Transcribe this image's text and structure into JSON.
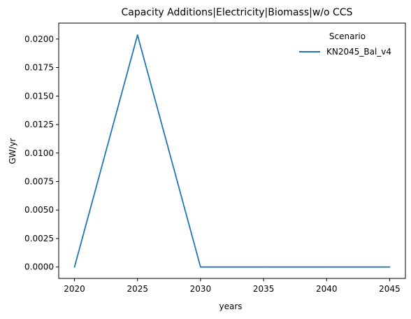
{
  "chart_data": {
    "type": "line",
    "title": "Capacity Additions|Electricity|Biomass|w/o CCS",
    "xlabel": "years",
    "ylabel": "GW/yr",
    "x": [
      2020,
      2025,
      2030,
      2035,
      2040,
      2045
    ],
    "series": [
      {
        "name": "KN2045_Bal_v4",
        "values": [
          0.0,
          0.02035,
          0.0,
          0.0,
          0.0,
          0.0
        ],
        "color": "#1f77b4"
      }
    ],
    "xticks": [
      "2020",
      "2025",
      "2030",
      "2035",
      "2040",
      "2045"
    ],
    "yticks": [
      "0.0000",
      "0.0025",
      "0.0050",
      "0.0075",
      "0.0100",
      "0.0125",
      "0.0150",
      "0.0175",
      "0.0200"
    ],
    "xlim": [
      2018.75,
      2046.25
    ],
    "ylim": [
      -0.001,
      0.0214
    ],
    "grid": false,
    "legend": {
      "title": "Scenario",
      "placement": "top-right"
    }
  }
}
